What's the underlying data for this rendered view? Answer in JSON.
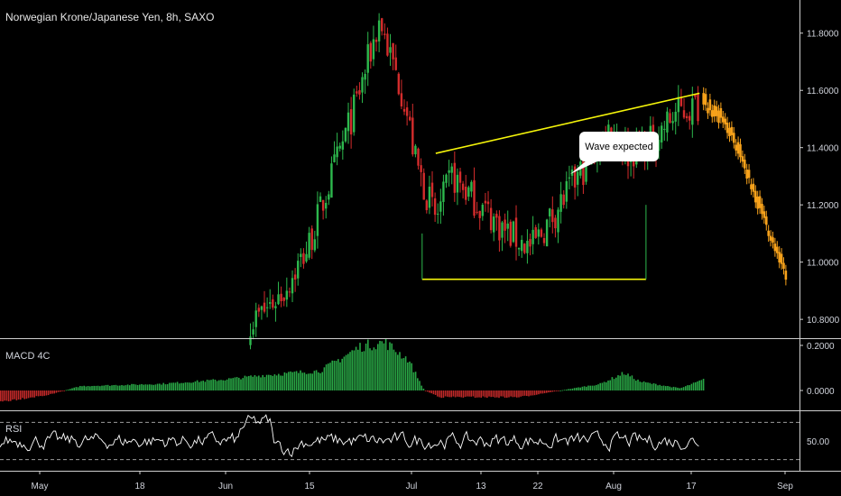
{
  "header": {
    "title": "Norwegian Krone/Japanese Yen, 8h, SAXO"
  },
  "annotation": {
    "text": "Wave expected"
  },
  "panels": {
    "macd_label": "MACD 4C",
    "rsi_label": "RSI"
  },
  "colors": {
    "up": "#26a69a",
    "up_bar": "#2db84d",
    "down": "#d42c2c",
    "projection": "#f7a21b",
    "trendline": "#f5f50a",
    "macd_pos": "#2db84d",
    "macd_neg": "#d42c2c",
    "rsi_line": "#ffffff"
  },
  "chart_data": [
    {
      "type": "candlestick",
      "title": "Norwegian Krone/Japanese Yen, 8h, SAXO",
      "x_ticks": [
        "May",
        "18",
        "Jun",
        "15",
        "Jul",
        "13",
        "22",
        "Aug",
        "17",
        "Sep"
      ],
      "y_ticks": [
        "11.8000",
        "11.6000",
        "11.4000",
        "11.2000",
        "11.0000",
        "10.8000"
      ],
      "ylim": [
        10.75,
        11.9
      ],
      "close_path": [
        [
          0.32,
          10.8
        ],
        [
          0.355,
          10.9
        ],
        [
          0.385,
          11.05
        ],
        [
          0.415,
          11.3
        ],
        [
          0.445,
          11.55
        ],
        [
          0.465,
          11.75
        ],
        [
          0.475,
          11.85
        ],
        [
          0.49,
          11.7
        ],
        [
          0.505,
          11.58
        ],
        [
          0.52,
          11.35
        ],
        [
          0.545,
          11.15
        ],
        [
          0.565,
          11.3
        ],
        [
          0.6,
          11.2
        ],
        [
          0.635,
          11.1
        ],
        [
          0.665,
          11.05
        ],
        [
          0.7,
          11.2
        ],
        [
          0.735,
          11.35
        ],
        [
          0.765,
          11.48
        ],
        [
          0.785,
          11.38
        ],
        [
          0.815,
          11.42
        ],
        [
          0.845,
          11.52
        ],
        [
          0.875,
          11.55
        ]
      ],
      "projection": [
        [
          0.88,
          11.55
        ],
        [
          0.905,
          11.48
        ],
        [
          0.925,
          11.38
        ],
        [
          0.945,
          11.22
        ],
        [
          0.965,
          11.08
        ],
        [
          0.985,
          10.93
        ]
      ],
      "trendlines": [
        {
          "from": [
            0.545,
            11.38
          ],
          "to": [
            0.875,
            11.59
          ]
        },
        {
          "from": [
            0.528,
            10.94
          ],
          "to": [
            0.808,
            10.94
          ]
        }
      ],
      "grid": false
    },
    {
      "type": "bar",
      "title": "MACD 4C",
      "y_ticks": [
        "0.2000",
        "0.0000"
      ],
      "ylim": [
        -0.08,
        0.22
      ],
      "profile": [
        [
          0.0,
          -0.05
        ],
        [
          0.06,
          -0.02
        ],
        [
          0.1,
          0.02
        ],
        [
          0.2,
          0.03
        ],
        [
          0.28,
          0.05
        ],
        [
          0.33,
          0.07
        ],
        [
          0.4,
          0.09
        ],
        [
          0.45,
          0.2
        ],
        [
          0.48,
          0.22
        ],
        [
          0.51,
          0.14
        ],
        [
          0.53,
          0.0
        ],
        [
          0.55,
          -0.03
        ],
        [
          0.65,
          -0.03
        ],
        [
          0.7,
          0.0
        ],
        [
          0.75,
          0.03
        ],
        [
          0.78,
          0.08
        ],
        [
          0.8,
          0.04
        ],
        [
          0.85,
          0.01
        ],
        [
          0.88,
          0.05
        ]
      ]
    },
    {
      "type": "line",
      "title": "RSI",
      "y_ticks": [
        "50.00"
      ],
      "ylim": [
        20,
        80
      ],
      "reference_lines": [
        70,
        30
      ]
    }
  ]
}
